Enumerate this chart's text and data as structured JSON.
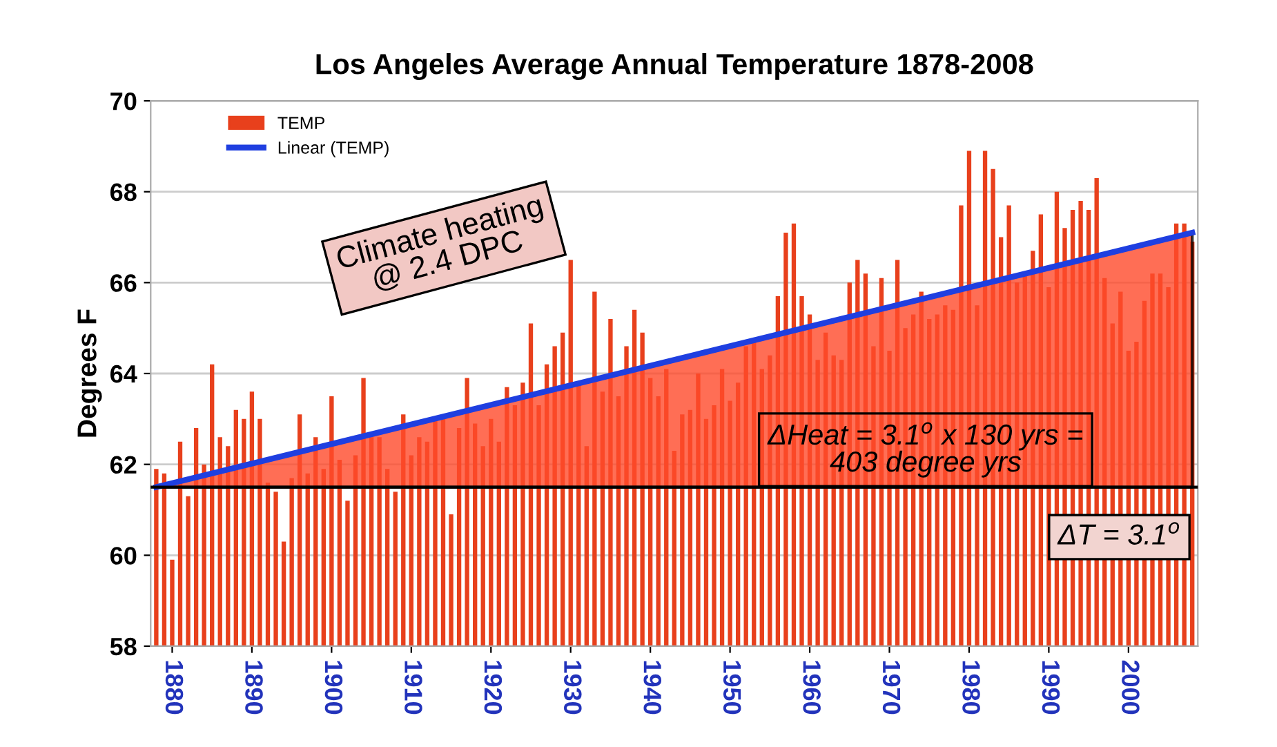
{
  "chart_data": {
    "type": "bar",
    "title": "Los Angeles Average Annual Temperature 1878-2008",
    "ylabel": "Degrees F",
    "xlim": [
      1877.3,
      2008.7
    ],
    "xticks": [
      1880,
      1890,
      1900,
      1910,
      1920,
      1930,
      1940,
      1950,
      1960,
      1970,
      1980,
      1990,
      2000
    ],
    "ylim": [
      58,
      70
    ],
    "yticks": [
      58,
      60,
      62,
      64,
      66,
      68,
      70
    ],
    "grid": "y",
    "legend": "top left",
    "series": [
      {
        "name": "TEMP",
        "color": "#e8401c",
        "x": [
          1878,
          1879,
          1880,
          1881,
          1882,
          1883,
          1884,
          1885,
          1886,
          1887,
          1888,
          1889,
          1890,
          1891,
          1892,
          1893,
          1894,
          1895,
          1896,
          1897,
          1898,
          1899,
          1900,
          1901,
          1902,
          1903,
          1904,
          1905,
          1906,
          1907,
          1908,
          1909,
          1910,
          1911,
          1912,
          1913,
          1914,
          1915,
          1916,
          1917,
          1918,
          1919,
          1920,
          1921,
          1922,
          1923,
          1924,
          1925,
          1926,
          1927,
          1928,
          1929,
          1930,
          1931,
          1932,
          1933,
          1934,
          1935,
          1936,
          1937,
          1938,
          1939,
          1940,
          1941,
          1942,
          1943,
          1944,
          1945,
          1946,
          1947,
          1948,
          1949,
          1950,
          1951,
          1952,
          1953,
          1954,
          1955,
          1956,
          1957,
          1958,
          1959,
          1960,
          1961,
          1962,
          1963,
          1964,
          1965,
          1966,
          1967,
          1968,
          1969,
          1970,
          1971,
          1972,
          1973,
          1974,
          1975,
          1976,
          1977,
          1978,
          1979,
          1980,
          1981,
          1982,
          1983,
          1984,
          1985,
          1986,
          1987,
          1988,
          1989,
          1990,
          1991,
          1992,
          1993,
          1994,
          1995,
          1996,
          1997,
          1998,
          1999,
          2000,
          2001,
          2002,
          2003,
          2004,
          2005,
          2006,
          2007,
          2008
        ],
        "values": [
          61.9,
          61.8,
          59.9,
          62.5,
          61.3,
          62.8,
          62.0,
          64.2,
          62.6,
          62.4,
          63.2,
          63.0,
          63.6,
          63.0,
          61.6,
          61.4,
          60.3,
          61.7,
          63.1,
          61.8,
          62.6,
          61.9,
          63.5,
          62.1,
          61.2,
          62.2,
          63.9,
          62.6,
          62.6,
          61.9,
          61.4,
          63.1,
          62.2,
          62.6,
          62.5,
          63.0,
          63.0,
          60.9,
          62.8,
          63.9,
          62.9,
          62.4,
          63.0,
          62.5,
          63.7,
          63.3,
          63.8,
          65.1,
          63.3,
          64.2,
          64.6,
          64.9,
          66.5,
          63.8,
          62.4,
          65.8,
          63.6,
          65.2,
          63.5,
          64.6,
          65.4,
          64.9,
          63.9,
          63.5,
          64.1,
          62.3,
          63.1,
          63.2,
          64.0,
          63.0,
          63.3,
          64.1,
          63.4,
          63.8,
          64.6,
          64.7,
          64.1,
          64.4,
          65.7,
          67.1,
          67.3,
          65.7,
          65.3,
          64.3,
          64.9,
          64.4,
          64.3,
          66.0,
          66.5,
          66.2,
          64.6,
          66.1,
          64.5,
          66.5,
          65.0,
          65.3,
          65.8,
          65.2,
          65.3,
          65.5,
          65.4,
          67.7,
          68.9,
          65.5,
          68.9,
          68.5,
          67.0,
          67.7,
          66.0,
          66.2,
          66.7,
          67.5,
          65.9,
          68.0,
          67.2,
          67.6,
          67.8,
          67.6,
          68.3,
          66.1,
          65.1,
          65.8,
          64.5,
          64.7,
          65.6,
          66.2,
          66.2,
          65.9,
          67.3,
          67.3,
          66.9
        ]
      },
      {
        "name": "Linear (TEMP)",
        "type": "line",
        "color": "#1f3fe0",
        "x": [
          1878,
          2008
        ],
        "values": [
          61.5,
          67.1
        ],
        "lower": [
          61.5,
          61.5
        ],
        "upper": [
          61.5,
          67.1
        ]
      }
    ],
    "ref_lines": [
      {
        "axis": "y",
        "value": 61.5,
        "color": "#000000",
        "line_style": "solid"
      }
    ],
    "annotations": [
      "Climate heating\n@ 2.4 DPC",
      "ΔT = 3.1$^{o}$",
      "ΔHeat = 3.1$^{o}$ x 130 yrs =\n403 degree yrs"
    ]
  }
}
